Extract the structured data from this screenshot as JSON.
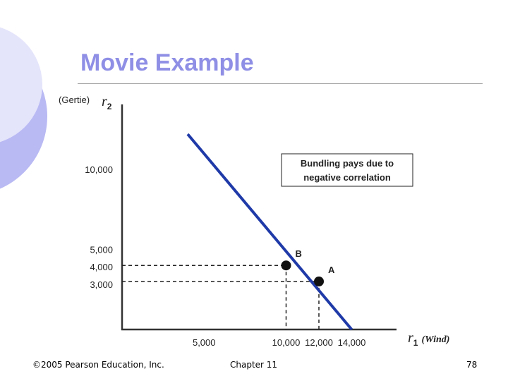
{
  "slide": {
    "title": "Movie Example",
    "footer_left": "©2005 Pearson Education, Inc.",
    "footer_center": "Chapter 11",
    "page_number": "78",
    "accent_color": "#8f8fe6",
    "decor_colors": [
      "#b9b9f4",
      "#e4e4fb"
    ]
  },
  "chart_data": {
    "type": "line",
    "title": "",
    "ylabel_prefix": "(Gertie)",
    "ylabel_symbol": "r",
    "ylabel_sub": "2",
    "xlabel_symbol": "r",
    "xlabel_sub": "1",
    "xlabel_suffix": "(Wind)",
    "x_ticks": [
      {
        "value": 5000,
        "label": "5,000"
      },
      {
        "value": 10000,
        "label": "10,000"
      },
      {
        "value": 12000,
        "label": "12,000"
      },
      {
        "value": 14000,
        "label": "14,000"
      }
    ],
    "y_ticks": [
      {
        "value": 10000,
        "label": "10,000"
      },
      {
        "value": 5000,
        "label": "5,000"
      },
      {
        "value": 4000,
        "label": "4,000"
      },
      {
        "value": 3000,
        "label": "3,000"
      }
    ],
    "series": [
      {
        "values": [
          [
            4000,
            12200
          ],
          [
            14000,
            0
          ]
        ],
        "color": "#1f3aa8"
      }
    ],
    "points": [
      {
        "label": "B",
        "x": 10000,
        "y": 4000
      },
      {
        "label": "A",
        "x": 12000,
        "y": 3000
      }
    ],
    "annotation": "Bundling pays due to negative correlation"
  }
}
